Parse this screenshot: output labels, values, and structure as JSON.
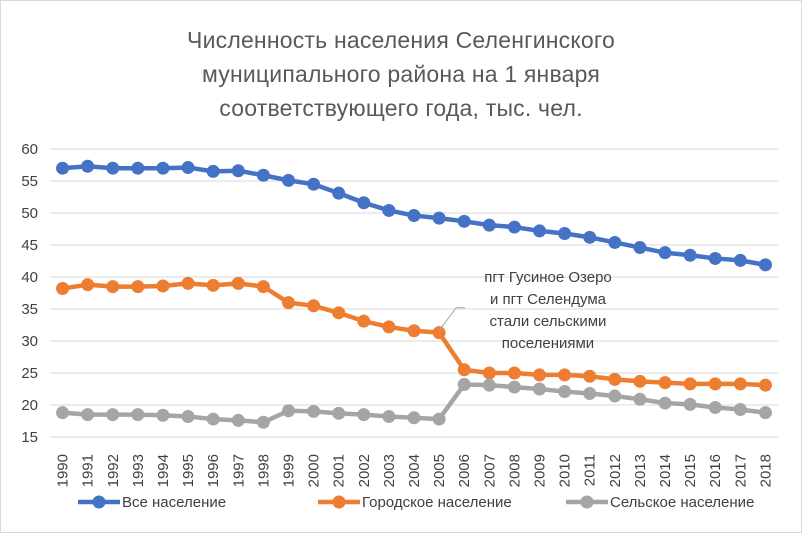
{
  "chart_data": {
    "type": "line",
    "title_lines": [
      "Численность населения Селенгинского",
      "муниципального района на 1 января",
      "соответствующего года, тыс. чел."
    ],
    "xlabel": "",
    "ylabel": "",
    "ylim": [
      15,
      60
    ],
    "yticks": [
      15,
      20,
      25,
      30,
      35,
      40,
      45,
      50,
      55,
      60
    ],
    "grid": "horizontal",
    "legend_position": "bottom",
    "categories": [
      "1990",
      "1991",
      "1992",
      "1993",
      "1994",
      "1995",
      "1996",
      "1997",
      "1998",
      "1999",
      "2000",
      "2001",
      "2002",
      "2003",
      "2004",
      "2005",
      "2006",
      "2007",
      "2008",
      "2009",
      "2010",
      "2011",
      "2012",
      "2013",
      "2014",
      "2015",
      "2016",
      "2017",
      "2018"
    ],
    "series": [
      {
        "name": "Все население",
        "color": "#4472c4",
        "values": [
          57.0,
          57.3,
          57.0,
          57.0,
          57.0,
          57.1,
          56.5,
          56.6,
          55.9,
          55.1,
          54.5,
          53.1,
          51.6,
          50.4,
          49.6,
          49.2,
          48.7,
          48.1,
          47.8,
          47.2,
          46.8,
          46.2,
          45.4,
          44.6,
          43.8,
          43.4,
          42.9,
          42.6,
          41.9
        ]
      },
      {
        "name": "Городское население",
        "color": "#ed7d31",
        "values": [
          38.2,
          38.8,
          38.5,
          38.5,
          38.6,
          39.0,
          38.7,
          39.0,
          38.5,
          36.0,
          35.5,
          34.4,
          33.1,
          32.2,
          31.6,
          31.3,
          25.5,
          25.0,
          25.0,
          24.7,
          24.7,
          24.5,
          24.0,
          23.7,
          23.5,
          23.3,
          23.3,
          23.3,
          23.1
        ]
      },
      {
        "name": "Сельское население",
        "color": "#a5a5a5",
        "values": [
          18.8,
          18.5,
          18.5,
          18.5,
          18.4,
          18.2,
          17.8,
          17.6,
          17.3,
          19.1,
          19.0,
          18.7,
          18.5,
          18.2,
          18.0,
          17.8,
          23.2,
          23.1,
          22.8,
          22.5,
          22.1,
          21.8,
          21.4,
          20.9,
          20.3,
          20.1,
          19.6,
          19.3,
          18.8
        ]
      }
    ],
    "annotation": {
      "lines": [
        "пгт Гусиное Озеро",
        "и пгт Селендума",
        "стали сельскими",
        "поселениями"
      ],
      "points_to": "2005"
    }
  }
}
